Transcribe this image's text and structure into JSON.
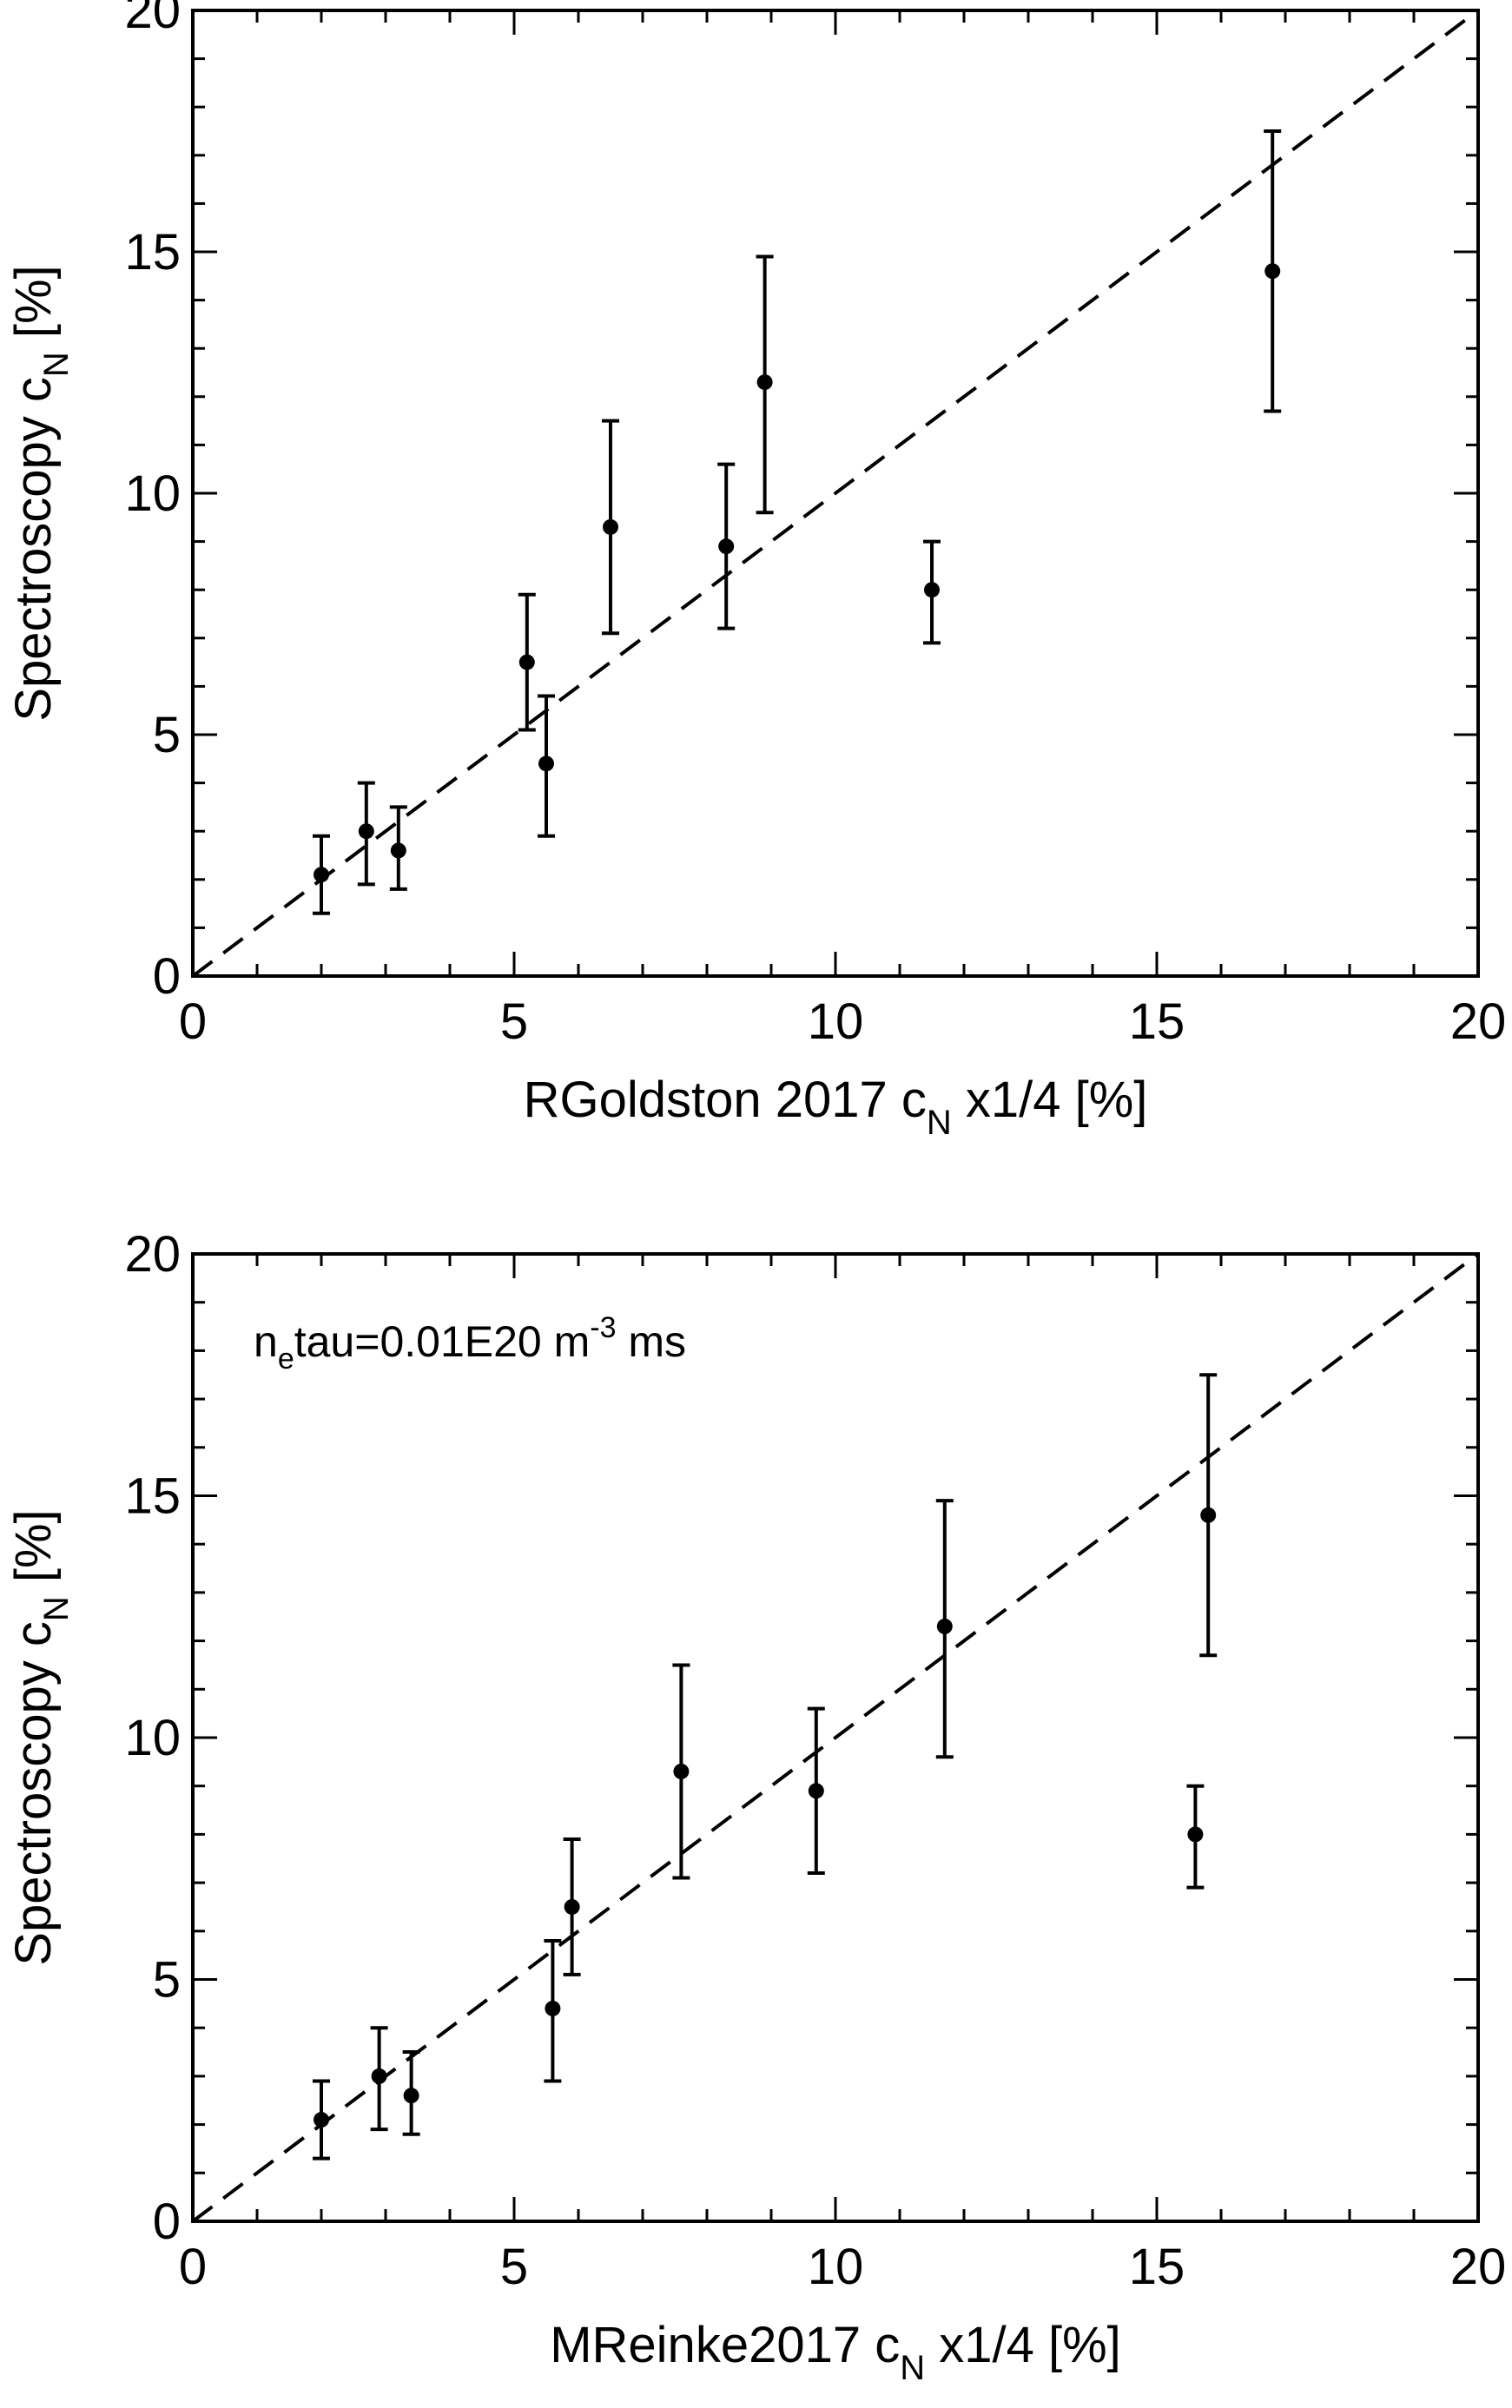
{
  "chart_data": [
    {
      "type": "scatter",
      "title": "",
      "xlabel": {
        "pre": "RGoldston 2017 c",
        "sub": "N",
        "post": " x1/4 [%]"
      },
      "ylabel": {
        "pre": "Spectroscopy c",
        "sub": "N",
        "post": " [%]"
      },
      "xlim": [
        0,
        20
      ],
      "ylim": [
        0,
        20
      ],
      "xticks": [
        0,
        5,
        10,
        15,
        20
      ],
      "yticks": [
        0,
        5,
        10,
        15,
        20
      ],
      "grid": false,
      "reference_line": "y = x (dashed)",
      "annotation": null,
      "points": [
        {
          "x": 2.0,
          "y": 2.1,
          "ylo": 1.3,
          "yhi": 2.9
        },
        {
          "x": 2.7,
          "y": 3.0,
          "ylo": 1.9,
          "yhi": 4.0
        },
        {
          "x": 3.2,
          "y": 2.6,
          "ylo": 1.8,
          "yhi": 3.5
        },
        {
          "x": 5.2,
          "y": 6.5,
          "ylo": 5.1,
          "yhi": 7.9
        },
        {
          "x": 5.5,
          "y": 4.4,
          "ylo": 2.9,
          "yhi": 5.8
        },
        {
          "x": 6.5,
          "y": 9.3,
          "ylo": 7.1,
          "yhi": 11.5
        },
        {
          "x": 8.3,
          "y": 8.9,
          "ylo": 7.2,
          "yhi": 10.6
        },
        {
          "x": 8.9,
          "y": 12.3,
          "ylo": 9.6,
          "yhi": 14.9
        },
        {
          "x": 11.5,
          "y": 8.0,
          "ylo": 6.9,
          "yhi": 9.0
        },
        {
          "x": 16.8,
          "y": 14.6,
          "ylo": 11.7,
          "yhi": 17.5
        }
      ]
    },
    {
      "type": "scatter",
      "title": "",
      "xlabel": {
        "pre": "MReinke2017 c",
        "sub": "N",
        "post": " x1/4 [%]"
      },
      "ylabel": {
        "pre": "Spectroscopy c",
        "sub": "N",
        "post": " [%]"
      },
      "xlim": [
        0,
        20
      ],
      "ylim": [
        0,
        20
      ],
      "xticks": [
        0,
        5,
        10,
        15,
        20
      ],
      "yticks": [
        0,
        5,
        10,
        15,
        20
      ],
      "grid": false,
      "reference_line": "y = x (dashed)",
      "annotation": {
        "a": "n",
        "a_sub": "e",
        "b": "tau=0.01E20 m",
        "b_sup": "-3",
        "c": " ms"
      },
      "points": [
        {
          "x": 2.0,
          "y": 2.1,
          "ylo": 1.3,
          "yhi": 2.9
        },
        {
          "x": 2.9,
          "y": 3.0,
          "ylo": 1.9,
          "yhi": 4.0
        },
        {
          "x": 3.4,
          "y": 2.6,
          "ylo": 1.8,
          "yhi": 3.5
        },
        {
          "x": 5.6,
          "y": 4.4,
          "ylo": 2.9,
          "yhi": 5.8
        },
        {
          "x": 5.9,
          "y": 6.5,
          "ylo": 5.1,
          "yhi": 7.9
        },
        {
          "x": 7.6,
          "y": 9.3,
          "ylo": 7.1,
          "yhi": 11.5
        },
        {
          "x": 9.7,
          "y": 8.9,
          "ylo": 7.2,
          "yhi": 10.6
        },
        {
          "x": 11.7,
          "y": 12.3,
          "ylo": 9.6,
          "yhi": 14.9
        },
        {
          "x": 15.6,
          "y": 8.0,
          "ylo": 6.9,
          "yhi": 9.0
        },
        {
          "x": 15.8,
          "y": 14.6,
          "ylo": 11.7,
          "yhi": 17.5
        }
      ]
    }
  ]
}
